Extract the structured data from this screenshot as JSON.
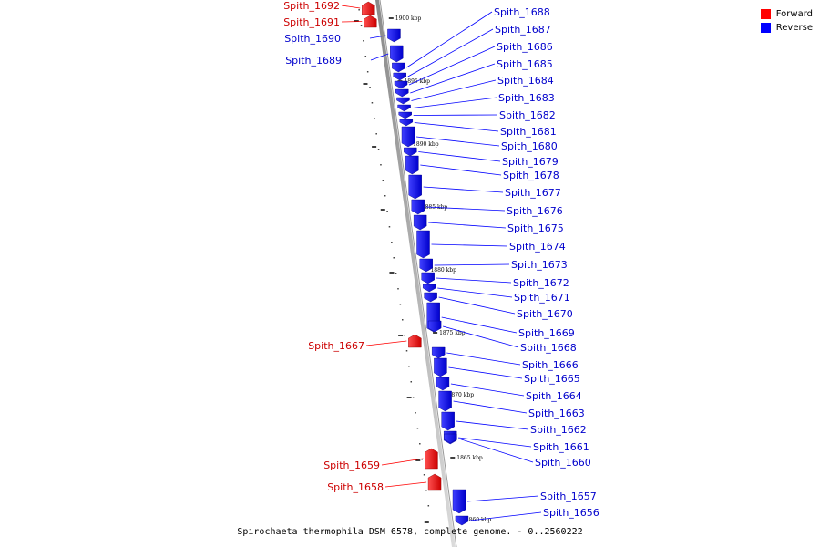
{
  "legend": {
    "forward_label": "Forward",
    "reverse_label": "Reverse",
    "forward_color": "#ff0000",
    "reverse_color": "#0000ff"
  },
  "caption": "Spirochaeta thermophila DSM 6578, complete genome. - 0..2560222",
  "ticks": [
    "1900 kbp",
    "1895 kbp",
    "1890 kbp",
    "1885 kbp",
    "1880 kbp",
    "1875 kbp",
    "1870 kbp",
    "1865 kbp",
    "1860 kbp"
  ],
  "genes": [
    {
      "name": "Spith_1692",
      "strand": "forward"
    },
    {
      "name": "Spith_1691",
      "strand": "forward"
    },
    {
      "name": "Spith_1690",
      "strand": "reverse"
    },
    {
      "name": "Spith_1689",
      "strand": "reverse"
    },
    {
      "name": "Spith_1688",
      "strand": "reverse"
    },
    {
      "name": "Spith_1687",
      "strand": "reverse"
    },
    {
      "name": "Spith_1686",
      "strand": "reverse"
    },
    {
      "name": "Spith_1685",
      "strand": "reverse"
    },
    {
      "name": "Spith_1684",
      "strand": "reverse"
    },
    {
      "name": "Spith_1683",
      "strand": "reverse"
    },
    {
      "name": "Spith_1682",
      "strand": "reverse"
    },
    {
      "name": "Spith_1681",
      "strand": "reverse"
    },
    {
      "name": "Spith_1680",
      "strand": "reverse"
    },
    {
      "name": "Spith_1679",
      "strand": "reverse"
    },
    {
      "name": "Spith_1678",
      "strand": "reverse"
    },
    {
      "name": "Spith_1677",
      "strand": "reverse"
    },
    {
      "name": "Spith_1676",
      "strand": "reverse"
    },
    {
      "name": "Spith_1675",
      "strand": "reverse"
    },
    {
      "name": "Spith_1674",
      "strand": "reverse"
    },
    {
      "name": "Spith_1673",
      "strand": "reverse"
    },
    {
      "name": "Spith_1672",
      "strand": "reverse"
    },
    {
      "name": "Spith_1671",
      "strand": "reverse"
    },
    {
      "name": "Spith_1670",
      "strand": "reverse"
    },
    {
      "name": "Spith_1669",
      "strand": "reverse"
    },
    {
      "name": "Spith_1668",
      "strand": "reverse"
    },
    {
      "name": "Spith_1667",
      "strand": "forward"
    },
    {
      "name": "Spith_1666",
      "strand": "reverse"
    },
    {
      "name": "Spith_1665",
      "strand": "reverse"
    },
    {
      "name": "Spith_1664",
      "strand": "reverse"
    },
    {
      "name": "Spith_1663",
      "strand": "reverse"
    },
    {
      "name": "Spith_1662",
      "strand": "reverse"
    },
    {
      "name": "Spith_1661",
      "strand": "reverse"
    },
    {
      "name": "Spith_1660",
      "strand": "reverse"
    },
    {
      "name": "Spith_1659",
      "strand": "forward"
    },
    {
      "name": "Spith_1658",
      "strand": "forward"
    },
    {
      "name": "Spith_1657",
      "strand": "reverse"
    },
    {
      "name": "Spith_1656",
      "strand": "reverse"
    }
  ]
}
